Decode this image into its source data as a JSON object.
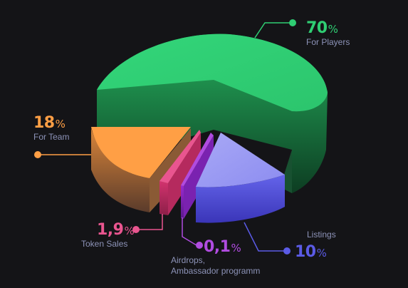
{
  "chart_data": {
    "type": "pie",
    "style": "3d-exploded",
    "legend": "callouts",
    "slices": [
      {
        "id": "players",
        "name": "For Players",
        "value": 70,
        "value_label": "70",
        "unit": "%",
        "color": "#2fce73"
      },
      {
        "id": "team",
        "name": "For Team",
        "value": 18,
        "value_label": "18",
        "unit": "%",
        "color": "#ff9f45"
      },
      {
        "id": "token-sales",
        "name": "Token Sales",
        "value": 1.9,
        "value_label": "1,9",
        "unit": "%",
        "color": "#e9558f"
      },
      {
        "id": "airdrops",
        "name": "Airdrops,\nAmbassador programm",
        "value": 0.1,
        "value_label": "0,1",
        "unit": "%",
        "color": "#b04ce0"
      },
      {
        "id": "listings",
        "name": "Listings",
        "value": 10,
        "value_label": "10",
        "unit": "%",
        "color": "#8f8ff2"
      }
    ]
  }
}
